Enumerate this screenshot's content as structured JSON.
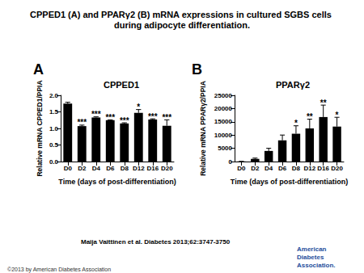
{
  "title": "CPPED1 (A) and PPARγ2 (B) mRNA expressions in cultured SGBS cells during adipocyte differentiation.",
  "citation": "Maija Vaittinen et al. Diabetes 2013;62:3747-3750",
  "copyright": "©2013 by American Diabetes Association",
  "logo": "American Diabetes Association.",
  "chart_data": [
    {
      "type": "bar",
      "panel": "A",
      "title": "CPPED1",
      "xlabel": "Time (days of post-differentiation)",
      "ylabel": "Relative mRNA CPPED1/PPIA",
      "categories": [
        "D0",
        "D2",
        "D4",
        "D6",
        "D8",
        "D12",
        "D16",
        "D20"
      ],
      "values": [
        1.75,
        1.07,
        1.33,
        1.25,
        1.15,
        1.47,
        1.27,
        1.08
      ],
      "errors": [
        0.04,
        0.03,
        0.02,
        0.01,
        0.02,
        0.1,
        0.02,
        0.18
      ],
      "significance": [
        null,
        "***",
        "***",
        "***",
        "***",
        "*",
        "***",
        "***"
      ],
      "color": "#000000",
      "ylim": [
        0,
        2.0
      ],
      "yticks": [
        {
          "value": 0,
          "label": "0.0"
        },
        {
          "value": 0.5,
          "label": "0.5"
        },
        {
          "value": 1.0,
          "label": "1.0"
        },
        {
          "value": 1.5,
          "label": "1.5"
        },
        {
          "value": 2.0,
          "label": "2.0"
        }
      ],
      "grid": false
    },
    {
      "type": "bar",
      "panel": "B",
      "title": "PPARγ2",
      "xlabel": "Time (days of post-differentiation)",
      "ylabel": "Relative mRNA PPARγ2/PPIA",
      "categories": [
        "D0",
        "D2",
        "D4",
        "D6",
        "D8",
        "D12",
        "D16",
        "D20"
      ],
      "values": [
        50,
        1000,
        4000,
        8000,
        10500,
        12500,
        16800,
        13200
      ],
      "errors": [
        20,
        300,
        1000,
        2000,
        3000,
        3500,
        4500,
        3500
      ],
      "significance": [
        null,
        null,
        null,
        null,
        "*",
        "**",
        "**",
        "*"
      ],
      "color": "#000000",
      "ylim": [
        0,
        25000
      ],
      "yticks": [
        0,
        5000,
        10000,
        15000,
        20000,
        25000
      ],
      "grid": false
    }
  ]
}
